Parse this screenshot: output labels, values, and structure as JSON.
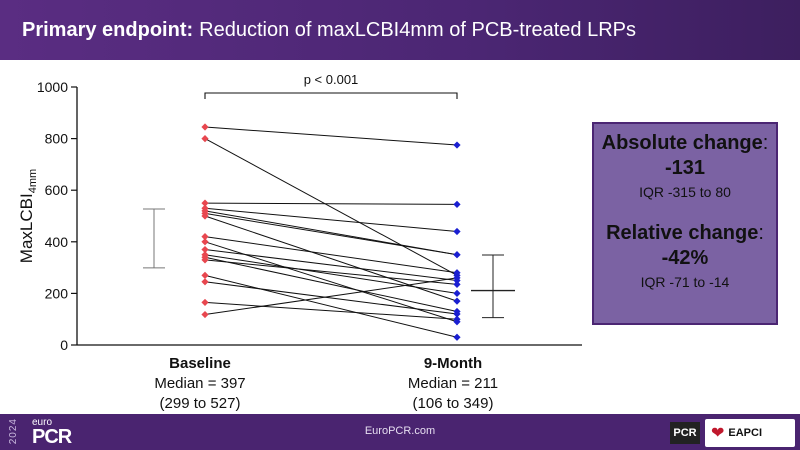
{
  "header": {
    "title_bold": "Primary endpoint:",
    "title_rest": "Reduction of maxLCBI4mm of PCB-treated LRPs"
  },
  "chart_data": {
    "type": "scatter",
    "subtype": "paired-dot-plot",
    "ylabel_main": "MaxLCBI",
    "ylabel_sub": "4mm",
    "ylim": [
      0,
      1000
    ],
    "yticks": [
      0,
      200,
      400,
      600,
      800,
      1000
    ],
    "categories": [
      "Baseline",
      "9-Month"
    ],
    "colors": {
      "baseline": "#e8474f",
      "month9": "#1a1fd1",
      "pair_line": "#111111"
    },
    "pairs": [
      [
        845,
        775
      ],
      [
        800,
        270
      ],
      [
        550,
        545
      ],
      [
        530,
        440
      ],
      [
        520,
        350
      ],
      [
        510,
        350
      ],
      [
        500,
        170
      ],
      [
        420,
        280
      ],
      [
        400,
        90
      ],
      [
        370,
        250
      ],
      [
        350,
        200
      ],
      [
        340,
        130
      ],
      [
        330,
        235
      ],
      [
        270,
        30
      ],
      [
        245,
        120
      ],
      [
        165,
        100
      ],
      [
        118,
        260
      ]
    ],
    "summary": [
      {
        "group": "Baseline",
        "median": 397,
        "q1": 299,
        "q3": 527
      },
      {
        "group": "9-Month",
        "median": 211,
        "q1": 106,
        "q3": 349
      }
    ],
    "annotation": "p < 0.001",
    "grid": false
  },
  "groups": [
    {
      "name": "Baseline",
      "median_text": "Median = 397",
      "iqr_text": "(299 to 527)"
    },
    {
      "name": "9-Month",
      "median_text": "Median = 211",
      "iqr_text": "(106 to 349)"
    }
  ],
  "stats": {
    "abs_heading": "Absolute change",
    "abs_value": "-131",
    "abs_iqr": "IQR -315 to 80",
    "rel_heading": "Relative change",
    "rel_value": "-42%",
    "rel_iqr": "IQR -71 to -14"
  },
  "footer": {
    "year": "2024",
    "brand_small": "euro",
    "brand": "PCR",
    "url": "EuroPCR.com",
    "pcr_logo": "PCR",
    "eapci_logo": "EAPCI"
  }
}
